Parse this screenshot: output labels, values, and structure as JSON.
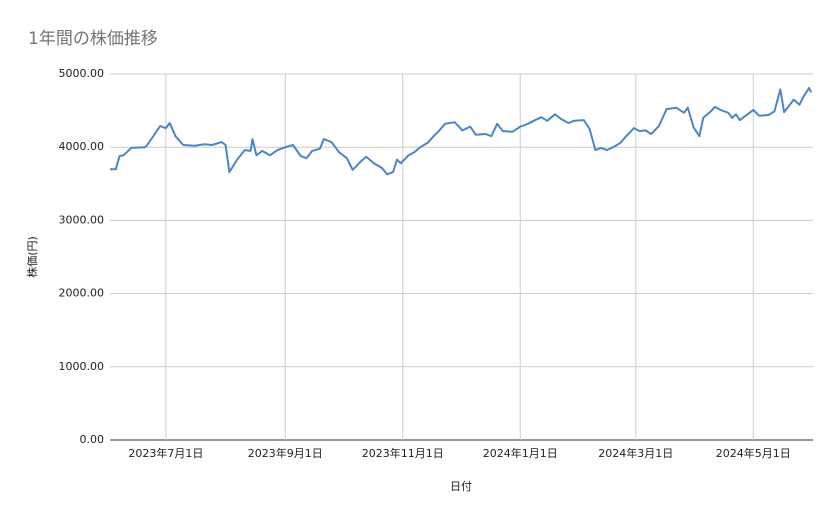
{
  "chart_data": {
    "type": "line",
    "title": "1年間の株価推移",
    "x_label": "日付",
    "y_label": "株価(円)",
    "x": [
      "2023-06-02",
      "2023-06-05",
      "2023-06-07",
      "2023-06-09",
      "2023-06-13",
      "2023-06-20",
      "2023-06-21",
      "2023-06-25",
      "2023-06-28",
      "2023-07-01",
      "2023-07-03",
      "2023-07-06",
      "2023-07-10",
      "2023-07-16",
      "2023-07-21",
      "2023-07-25",
      "2023-07-30",
      "2023-08-01",
      "2023-08-03",
      "2023-08-07",
      "2023-08-11",
      "2023-08-14",
      "2023-08-15",
      "2023-08-17",
      "2023-08-20",
      "2023-08-24",
      "2023-08-28",
      "2023-09-01",
      "2023-09-05",
      "2023-09-09",
      "2023-09-12",
      "2023-09-15",
      "2023-09-19",
      "2023-09-21",
      "2023-09-25",
      "2023-09-29",
      "2023-10-03",
      "2023-10-06",
      "2023-10-10",
      "2023-10-13",
      "2023-10-17",
      "2023-10-21",
      "2023-10-24",
      "2023-10-27",
      "2023-10-29",
      "2023-10-31",
      "2023-11-04",
      "2023-11-07",
      "2023-11-10",
      "2023-11-14",
      "2023-11-17",
      "2023-11-20",
      "2023-11-23",
      "2023-11-28",
      "2023-12-02",
      "2023-12-06",
      "2023-12-09",
      "2023-12-14",
      "2023-12-17",
      "2023-12-20",
      "2023-12-23",
      "2023-12-28",
      "2024-01-01",
      "2024-01-05",
      "2024-01-08",
      "2024-01-12",
      "2024-01-15",
      "2024-01-19",
      "2024-01-22",
      "2024-01-26",
      "2024-01-29",
      "2024-02-03",
      "2024-02-06",
      "2024-02-09",
      "2024-02-12",
      "2024-02-15",
      "2024-02-19",
      "2024-02-22",
      "2024-02-25",
      "2024-02-29",
      "2024-03-03",
      "2024-03-06",
      "2024-03-09",
      "2024-03-13",
      "2024-03-17",
      "2024-03-22",
      "2024-03-26",
      "2024-03-28",
      "2024-03-31",
      "2024-04-03",
      "2024-04-05",
      "2024-04-09",
      "2024-04-11",
      "2024-04-14",
      "2024-04-18",
      "2024-04-20",
      "2024-04-22",
      "2024-04-24",
      "2024-04-28",
      "2024-05-01",
      "2024-05-04",
      "2024-05-09",
      "2024-05-12",
      "2024-05-15",
      "2024-05-17",
      "2024-05-20",
      "2024-05-22",
      "2024-05-25",
      "2024-05-27",
      "2024-05-30",
      "2024-05-31"
    ],
    "series": [
      {
        "name": "株価(円)",
        "color": "#4a86c8",
        "values": [
          3700,
          3700,
          3880,
          3890,
          3990,
          4000,
          4020,
          4170,
          4290,
          4260,
          4330,
          4150,
          4030,
          4020,
          4040,
          4030,
          4070,
          4030,
          3660,
          3830,
          3960,
          3950,
          4110,
          3890,
          3950,
          3890,
          3960,
          4000,
          4030,
          3880,
          3850,
          3950,
          3980,
          4110,
          4070,
          3930,
          3850,
          3690,
          3800,
          3870,
          3780,
          3720,
          3630,
          3660,
          3830,
          3780,
          3890,
          3930,
          4000,
          4060,
          4150,
          4230,
          4320,
          4340,
          4230,
          4280,
          4170,
          4180,
          4150,
          4320,
          4220,
          4210,
          4280,
          4320,
          4360,
          4410,
          4360,
          4450,
          4390,
          4330,
          4360,
          4370,
          4250,
          3960,
          3990,
          3960,
          4010,
          4060,
          4150,
          4260,
          4220,
          4230,
          4180,
          4290,
          4520,
          4540,
          4470,
          4540,
          4270,
          4150,
          4400,
          4490,
          4550,
          4510,
          4470,
          4400,
          4450,
          4370,
          4450,
          4510,
          4430,
          4440,
          4490,
          4790,
          4480,
          4580,
          4650,
          4580,
          4690,
          4810,
          4750
        ]
      }
    ],
    "xlim": [
      "2023-06-02",
      "2024-06-01"
    ],
    "xticks": [
      {
        "value": "2023-07-01",
        "label": "2023年7月1日"
      },
      {
        "value": "2023-09-01",
        "label": "2023年9月1日"
      },
      {
        "value": "2023-11-01",
        "label": "2023年11月1日"
      },
      {
        "value": "2024-01-01",
        "label": "2024年1月1日"
      },
      {
        "value": "2024-03-01",
        "label": "2024年3月1日"
      },
      {
        "value": "2024-05-01",
        "label": "2024年5月1日"
      }
    ],
    "ylim": [
      0,
      5000
    ],
    "yticks": [
      {
        "value": 0,
        "label": "0.00"
      },
      {
        "value": 1000,
        "label": "1000.00"
      },
      {
        "value": 2000,
        "label": "2000.00"
      },
      {
        "value": 3000,
        "label": "3000.00"
      },
      {
        "value": 4000,
        "label": "4000.00"
      },
      {
        "value": 5000,
        "label": "5000.00"
      }
    ],
    "grid": true
  }
}
